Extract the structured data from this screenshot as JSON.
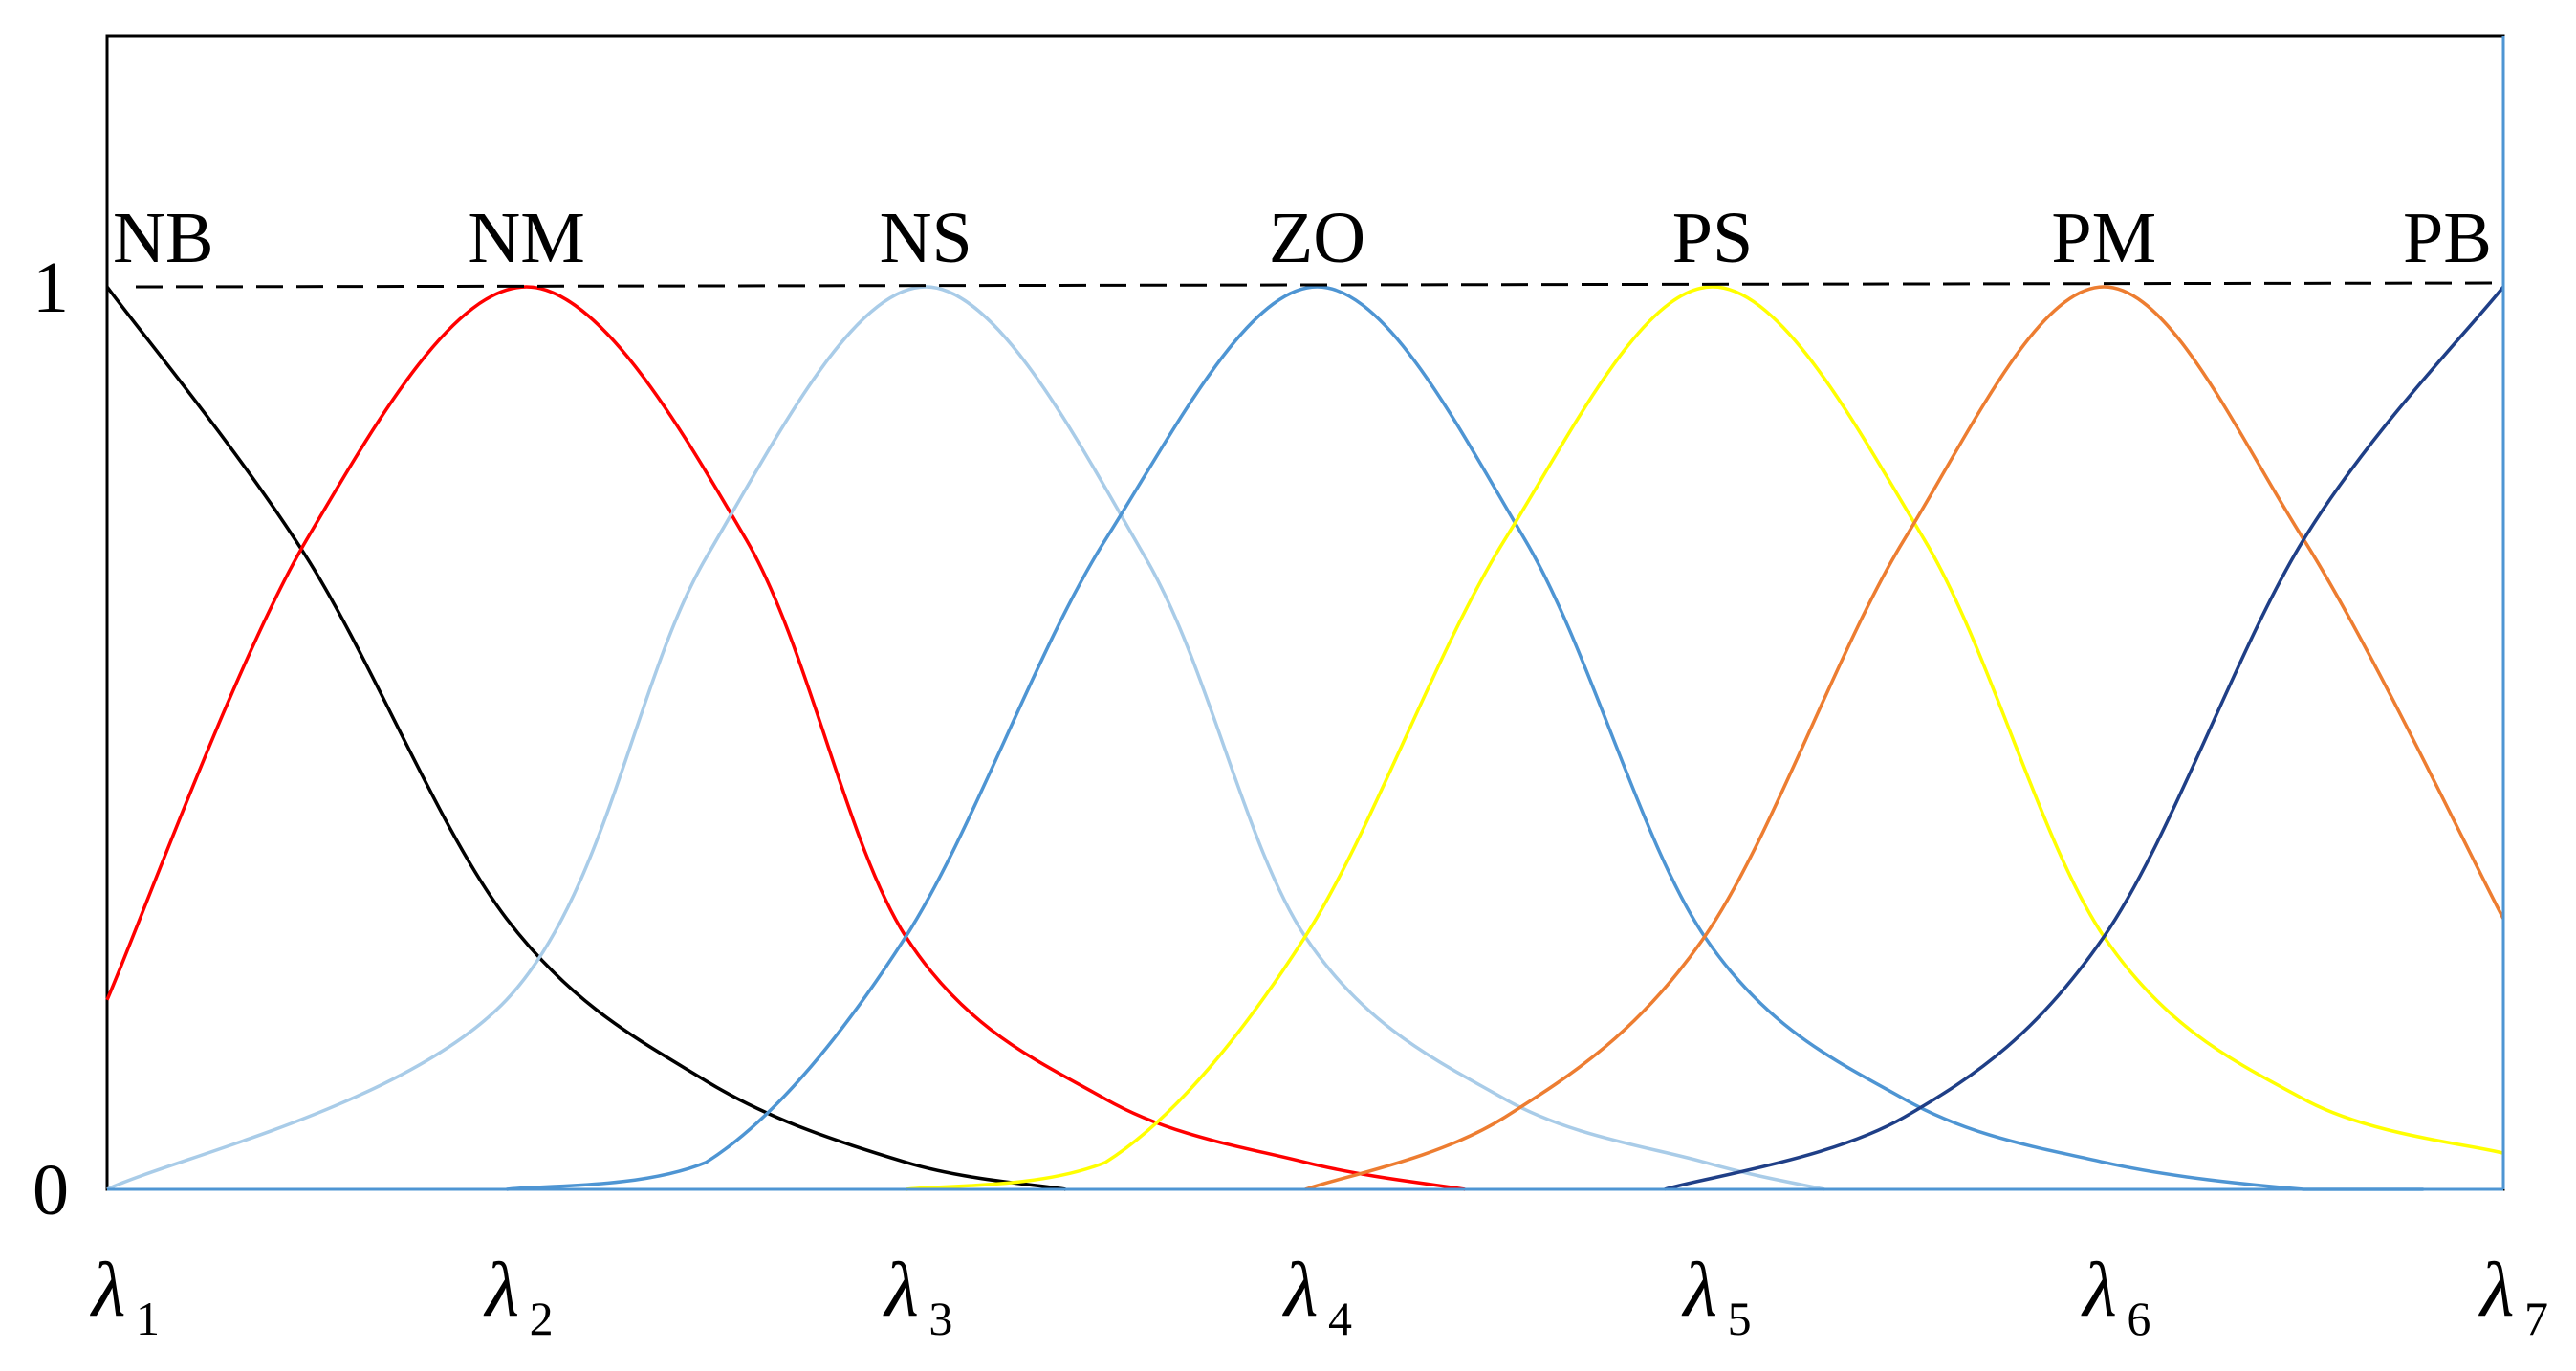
{
  "chart_data": {
    "type": "line",
    "title": "",
    "xlabel": "",
    "ylabel": "",
    "ylim": [
      0,
      1
    ],
    "xlim": [
      1,
      7
    ],
    "grid": false,
    "legend": "none",
    "y_ticks": [
      "0",
      "1"
    ],
    "x_ticks": [
      {
        "symbol": "λ",
        "subscript": "1"
      },
      {
        "symbol": "λ",
        "subscript": "2"
      },
      {
        "symbol": "λ",
        "subscript": "3"
      },
      {
        "symbol": "λ",
        "subscript": "4"
      },
      {
        "symbol": "λ",
        "subscript": "5"
      },
      {
        "symbol": "λ",
        "subscript": "6"
      },
      {
        "symbol": "λ",
        "subscript": "7"
      }
    ],
    "reference_line": {
      "y": 1,
      "style": "dashed",
      "color": "#000000"
    },
    "series": [
      {
        "name": "NB",
        "center": 1.0,
        "color": "#000000",
        "x": [
          1.0,
          1.5,
          2.0,
          2.5,
          3.0,
          3.4
        ],
        "y": [
          1.0,
          0.7,
          0.3,
          0.12,
          0.03,
          0.0
        ]
      },
      {
        "name": "NM",
        "center": 2.05,
        "color": "#ff0000",
        "x": [
          1.0,
          1.5,
          2.05,
          2.6,
          3.0,
          3.5,
          4.0,
          4.4
        ],
        "y": [
          0.21,
          0.72,
          1.0,
          0.72,
          0.28,
          0.1,
          0.03,
          0.0
        ]
      },
      {
        "name": "NS",
        "center": 3.05,
        "color": "#a9cce8",
        "x": [
          1.0,
          2.0,
          2.5,
          3.05,
          3.6,
          4.0,
          4.5,
          5.0,
          5.3
        ],
        "y": [
          0.0,
          0.21,
          0.7,
          1.0,
          0.7,
          0.28,
          0.1,
          0.03,
          0.0
        ]
      },
      {
        "name": "ZO",
        "center": 4.03,
        "color": "#4e95d3",
        "x": [
          2.0,
          2.5,
          3.0,
          3.5,
          4.03,
          4.55,
          5.0,
          5.5,
          6.0,
          6.5,
          6.8
        ],
        "y": [
          0.0,
          0.03,
          0.28,
          0.72,
          1.0,
          0.72,
          0.28,
          0.1,
          0.03,
          0.0,
          0.0
        ]
      },
      {
        "name": "PS",
        "center": 5.02,
        "color": "#ffff00",
        "x": [
          3.0,
          3.5,
          4.0,
          4.5,
          5.02,
          5.55,
          6.0,
          6.5,
          7.0
        ],
        "y": [
          0.0,
          0.03,
          0.28,
          0.72,
          1.0,
          0.72,
          0.28,
          0.1,
          0.04
        ]
      },
      {
        "name": "PM",
        "center": 6.0,
        "color": "#ed7d31",
        "x": [
          4.0,
          4.5,
          5.0,
          5.5,
          6.0,
          6.5,
          7.0
        ],
        "y": [
          0.0,
          0.08,
          0.28,
          0.72,
          1.0,
          0.72,
          0.3
        ]
      },
      {
        "name": "PB",
        "center": 7.0,
        "color": "#1f3f87",
        "x": [
          4.9,
          5.5,
          6.0,
          6.5,
          7.0
        ],
        "y": [
          0.0,
          0.08,
          0.28,
          0.72,
          1.0
        ]
      }
    ]
  }
}
